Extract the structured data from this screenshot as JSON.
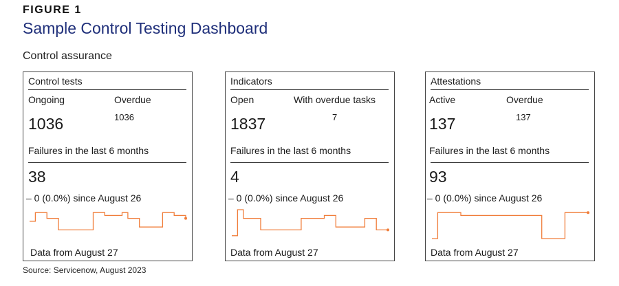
{
  "figure_label": "FIGURE 1",
  "title": "Sample Control Testing Dashboard",
  "section_label": "Control assurance",
  "source": "Source: Servicenow, August 2023",
  "colors": {
    "title": "#1f2f7a",
    "sparkline": "#f07d3a"
  },
  "chart_data": [
    {
      "type": "line",
      "title": "Control tests",
      "stat_left_label": "Ongoing",
      "stat_left_value": "1036",
      "stat_right_label": "Overdue",
      "stat_right_value": "1036",
      "failures_label": "Failures in the last 6 months",
      "failures_value": "38",
      "change_text": "– 0 (0.0%) since August 26",
      "footer": "Data from August 27",
      "values": [
        6,
        9,
        9,
        7,
        7,
        3,
        3,
        3,
        3,
        3,
        3,
        9,
        9,
        8,
        8,
        8,
        9,
        7,
        7,
        4,
        4,
        4,
        4,
        9,
        9,
        8,
        8,
        7
      ]
    },
    {
      "type": "line",
      "title": "Indicators",
      "stat_left_label": "Open",
      "stat_left_value": "1837",
      "stat_right_label": "With overdue tasks",
      "stat_right_value": "7",
      "failures_label": "Failures in the last 6 months",
      "failures_value": "4",
      "change_text": "– 0 (0.0%) since August 26",
      "footer": "Data from August 27",
      "values": [
        1,
        10,
        7,
        7,
        7,
        3,
        3,
        3,
        3,
        3,
        3,
        3,
        7,
        7,
        7,
        7,
        8,
        8,
        4,
        4,
        4,
        4,
        4,
        7,
        7,
        3,
        3,
        3
      ]
    },
    {
      "type": "line",
      "title": "Attestations",
      "stat_left_label": "Active",
      "stat_left_value": "137",
      "stat_right_label": "Overdue",
      "stat_right_value": "137",
      "failures_label": "Failures in the last 6 months",
      "failures_value": "93",
      "change_text": "– 0 (0.0%) since August 26",
      "footer": "Data from August 27",
      "values": [
        0,
        9,
        9,
        9,
        9,
        8,
        8,
        8,
        8,
        8,
        8,
        8,
        8,
        8,
        8,
        8,
        8,
        8,
        8,
        0,
        0,
        0,
        0,
        9,
        9,
        9,
        9,
        9
      ]
    }
  ]
}
